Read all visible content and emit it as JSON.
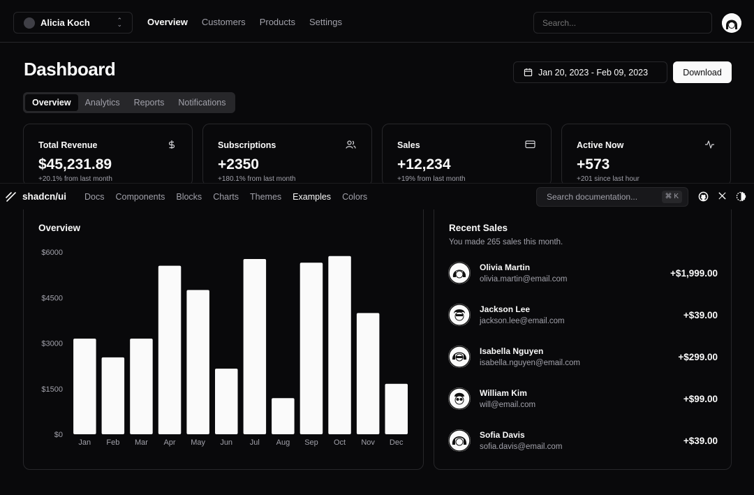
{
  "team_switcher": {
    "name": "Alicia Koch"
  },
  "main_nav": [
    "Overview",
    "Customers",
    "Products",
    "Settings"
  ],
  "search": {
    "placeholder": "Search..."
  },
  "page": {
    "title": "Dashboard",
    "date_range": "Jan 20, 2023 - Feb 09, 2023",
    "download_label": "Download"
  },
  "tabs": [
    "Overview",
    "Analytics",
    "Reports",
    "Notifications"
  ],
  "stats": [
    {
      "title": "Total Revenue",
      "value": "$45,231.89",
      "sub": "+20.1% from last month",
      "icon": "dollar-icon"
    },
    {
      "title": "Subscriptions",
      "value": "+2350",
      "sub": "+180.1% from last month",
      "icon": "users-icon"
    },
    {
      "title": "Sales",
      "value": "+12,234",
      "sub": "+19% from last month",
      "icon": "credit-card-icon"
    },
    {
      "title": "Active Now",
      "value": "+573",
      "sub": "+201 since last hour",
      "icon": "activity-icon"
    }
  ],
  "docs_bar": {
    "name": "shadcn/ui",
    "links": [
      "Docs",
      "Components",
      "Blocks",
      "Charts",
      "Themes",
      "Examples",
      "Colors"
    ],
    "active_link": "Examples",
    "search_placeholder": "Search documentation...",
    "shortcut": "⌘ K",
    "icons": [
      "github-icon",
      "x-icon",
      "theme-toggle-icon"
    ]
  },
  "overview": {
    "title": "Overview"
  },
  "chart_data": {
    "type": "bar",
    "title": "Overview",
    "categories": [
      "Jan",
      "Feb",
      "Mar",
      "Apr",
      "May",
      "Jun",
      "Jul",
      "Aug",
      "Sep",
      "Oct",
      "Nov",
      "Dec"
    ],
    "values": [
      3150,
      2530,
      3150,
      5550,
      4750,
      2160,
      5770,
      1190,
      5650,
      5870,
      3990,
      1660
    ],
    "ytick_labels": [
      "$0",
      "$1500",
      "$3000",
      "$4500",
      "$6000"
    ],
    "yticks": [
      0,
      1500,
      3000,
      4500,
      6000
    ],
    "ylim": [
      0,
      6000
    ],
    "grid": false,
    "bar_color": "#fafafa"
  },
  "recent_sales": {
    "title": "Recent Sales",
    "description": "You made 265 sales this month.",
    "items": [
      {
        "name": "Olivia Martin",
        "email": "olivia.martin@email.com",
        "amount": "+$1,999.00"
      },
      {
        "name": "Jackson Lee",
        "email": "jackson.lee@email.com",
        "amount": "+$39.00"
      },
      {
        "name": "Isabella Nguyen",
        "email": "isabella.nguyen@email.com",
        "amount": "+$299.00"
      },
      {
        "name": "William Kim",
        "email": "will@email.com",
        "amount": "+$99.00"
      },
      {
        "name": "Sofia Davis",
        "email": "sofia.davis@email.com",
        "amount": "+$39.00"
      }
    ]
  },
  "colors": {
    "background": "#09090b",
    "border": "#27272a",
    "muted_text": "#a1a1aa",
    "foreground": "#fafafa"
  }
}
